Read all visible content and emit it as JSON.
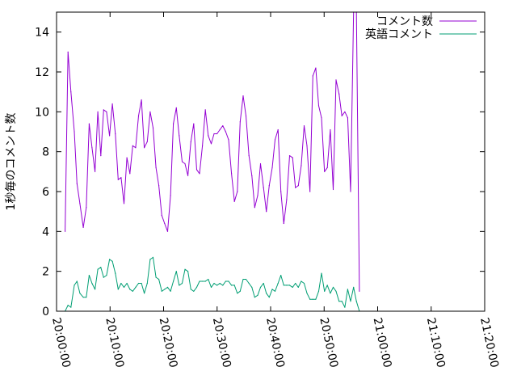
{
  "chart_data": {
    "type": "line",
    "title": "",
    "xlabel": "",
    "ylabel": "1秒毎のコメント数",
    "xlim": [
      "20:00:00",
      "21:20:00"
    ],
    "ylim": [
      0,
      15
    ],
    "grid": false,
    "legend_position": "top-right",
    "y_ticks": [
      0,
      2,
      4,
      6,
      8,
      10,
      12,
      14
    ],
    "x_ticks": [
      "20:00:00",
      "20:10:00",
      "20:20:00",
      "20:30:00",
      "20:40:00",
      "20:50:00",
      "21:00:00",
      "21:10:00",
      "21:20:00"
    ],
    "series": [
      {
        "name": "コメント数",
        "color": "#9400d3",
        "points": [
          [
            "20:01:36",
            4.0
          ],
          [
            "20:02:09",
            13.0
          ],
          [
            "20:02:41",
            11.0
          ],
          [
            "20:03:19",
            9.0
          ],
          [
            "20:03:49",
            6.4
          ],
          [
            "20:04:22",
            5.4
          ],
          [
            "20:05:00",
            4.2
          ],
          [
            "20:05:33",
            5.2
          ],
          [
            "20:06:06",
            9.4
          ],
          [
            "20:06:38",
            8.2
          ],
          [
            "20:07:11",
            7.0
          ],
          [
            "20:07:43",
            10.0
          ],
          [
            "20:08:16",
            7.8
          ],
          [
            "20:08:48",
            10.1
          ],
          [
            "20:09:21",
            10.0
          ],
          [
            "20:09:54",
            8.8
          ],
          [
            "20:10:26",
            10.4
          ],
          [
            "20:10:59",
            8.9
          ],
          [
            "20:11:31",
            6.6
          ],
          [
            "20:12:04",
            6.7
          ],
          [
            "20:12:36",
            5.4
          ],
          [
            "20:13:09",
            7.7
          ],
          [
            "20:13:42",
            6.9
          ],
          [
            "20:14:14",
            8.3
          ],
          [
            "20:14:47",
            8.2
          ],
          [
            "20:15:19",
            9.8
          ],
          [
            "20:15:52",
            10.6
          ],
          [
            "20:16:24",
            8.2
          ],
          [
            "20:16:57",
            8.5
          ],
          [
            "20:17:30",
            10.0
          ],
          [
            "20:18:02",
            9.2
          ],
          [
            "20:18:35",
            7.2
          ],
          [
            "20:19:07",
            6.3
          ],
          [
            "20:19:40",
            4.8
          ],
          [
            "20:20:12",
            4.4
          ],
          [
            "20:20:45",
            4.0
          ],
          [
            "20:21:18",
            5.8
          ],
          [
            "20:21:50",
            9.4
          ],
          [
            "20:22:23",
            10.2
          ],
          [
            "20:22:55",
            8.8
          ],
          [
            "20:23:28",
            7.5
          ],
          [
            "20:24:00",
            7.4
          ],
          [
            "20:24:33",
            6.8
          ],
          [
            "20:25:06",
            8.5
          ],
          [
            "20:25:38",
            9.4
          ],
          [
            "20:26:11",
            7.1
          ],
          [
            "20:26:43",
            6.9
          ],
          [
            "20:27:16",
            8.3
          ],
          [
            "20:27:48",
            10.1
          ],
          [
            "20:28:21",
            8.8
          ],
          [
            "20:28:54",
            8.4
          ],
          [
            "20:29:26",
            8.9
          ],
          [
            "20:29:59",
            8.9
          ],
          [
            "20:30:31",
            9.1
          ],
          [
            "20:31:04",
            9.3
          ],
          [
            "20:31:36",
            9.0
          ],
          [
            "20:32:09",
            8.6
          ],
          [
            "20:32:42",
            6.9
          ],
          [
            "20:33:14",
            5.5
          ],
          [
            "20:33:47",
            6.0
          ],
          [
            "20:34:19",
            9.5
          ],
          [
            "20:34:52",
            10.8
          ],
          [
            "20:35:24",
            9.8
          ],
          [
            "20:35:57",
            7.8
          ],
          [
            "20:36:30",
            6.8
          ],
          [
            "20:37:02",
            5.2
          ],
          [
            "20:37:35",
            5.8
          ],
          [
            "20:38:07",
            7.4
          ],
          [
            "20:38:40",
            6.2
          ],
          [
            "20:39:12",
            5.0
          ],
          [
            "20:39:45",
            6.3
          ],
          [
            "20:40:18",
            7.2
          ],
          [
            "20:40:50",
            8.6
          ],
          [
            "20:41:23",
            9.1
          ],
          [
            "20:41:55",
            6.0
          ],
          [
            "20:42:28",
            4.4
          ],
          [
            "20:43:00",
            5.6
          ],
          [
            "20:43:33",
            7.8
          ],
          [
            "20:44:06",
            7.7
          ],
          [
            "20:44:38",
            6.2
          ],
          [
            "20:45:11",
            6.3
          ],
          [
            "20:45:43",
            7.3
          ],
          [
            "20:46:16",
            9.3
          ],
          [
            "20:46:48",
            8.3
          ],
          [
            "20:47:21",
            6.0
          ],
          [
            "20:47:54",
            11.8
          ],
          [
            "20:48:26",
            12.2
          ],
          [
            "20:48:59",
            10.3
          ],
          [
            "20:49:31",
            9.7
          ],
          [
            "20:50:04",
            7.0
          ],
          [
            "20:50:36",
            7.2
          ],
          [
            "20:51:09",
            9.1
          ],
          [
            "20:51:42",
            6.1
          ],
          [
            "20:52:14",
            11.6
          ],
          [
            "20:52:47",
            10.9
          ],
          [
            "20:53:19",
            9.8
          ],
          [
            "20:53:52",
            10.0
          ],
          [
            "20:54:24",
            9.7
          ],
          [
            "20:54:57",
            6.0
          ],
          [
            "20:55:30",
            15.0
          ],
          [
            "20:56:02",
            15.0
          ],
          [
            "20:56:35",
            1.0
          ]
        ]
      },
      {
        "name": "英語コメント",
        "color": "#009e73",
        "points": [
          [
            "20:01:36",
            0.0
          ],
          [
            "20:02:09",
            0.3
          ],
          [
            "20:02:41",
            0.2
          ],
          [
            "20:03:19",
            1.3
          ],
          [
            "20:03:49",
            1.5
          ],
          [
            "20:04:22",
            0.9
          ],
          [
            "20:05:00",
            0.7
          ],
          [
            "20:05:33",
            0.7
          ],
          [
            "20:06:06",
            1.8
          ],
          [
            "20:06:38",
            1.4
          ],
          [
            "20:07:11",
            1.1
          ],
          [
            "20:07:43",
            2.1
          ],
          [
            "20:08:16",
            2.2
          ],
          [
            "20:08:48",
            1.7
          ],
          [
            "20:09:21",
            1.8
          ],
          [
            "20:09:54",
            2.6
          ],
          [
            "20:10:26",
            2.5
          ],
          [
            "20:10:59",
            1.9
          ],
          [
            "20:11:31",
            1.1
          ],
          [
            "20:12:04",
            1.4
          ],
          [
            "20:12:36",
            1.2
          ],
          [
            "20:13:09",
            1.4
          ],
          [
            "20:13:42",
            1.1
          ],
          [
            "20:14:14",
            1.0
          ],
          [
            "20:14:47",
            1.2
          ],
          [
            "20:15:19",
            1.4
          ],
          [
            "20:15:52",
            1.4
          ],
          [
            "20:16:24",
            0.9
          ],
          [
            "20:16:57",
            1.4
          ],
          [
            "20:17:30",
            2.6
          ],
          [
            "20:18:02",
            2.7
          ],
          [
            "20:18:35",
            1.7
          ],
          [
            "20:19:07",
            1.6
          ],
          [
            "20:19:40",
            1.0
          ],
          [
            "20:20:12",
            1.1
          ],
          [
            "20:20:45",
            1.2
          ],
          [
            "20:21:18",
            1.0
          ],
          [
            "20:21:50",
            1.5
          ],
          [
            "20:22:23",
            2.0
          ],
          [
            "20:22:55",
            1.3
          ],
          [
            "20:23:28",
            1.4
          ],
          [
            "20:24:00",
            2.1
          ],
          [
            "20:24:33",
            2.0
          ],
          [
            "20:25:06",
            1.1
          ],
          [
            "20:25:38",
            1.0
          ],
          [
            "20:26:11",
            1.2
          ],
          [
            "20:26:43",
            1.5
          ],
          [
            "20:27:16",
            1.5
          ],
          [
            "20:27:48",
            1.5
          ],
          [
            "20:28:21",
            1.6
          ],
          [
            "20:28:54",
            1.2
          ],
          [
            "20:29:26",
            1.4
          ],
          [
            "20:29:59",
            1.3
          ],
          [
            "20:30:31",
            1.4
          ],
          [
            "20:31:04",
            1.3
          ],
          [
            "20:31:36",
            1.5
          ],
          [
            "20:32:09",
            1.5
          ],
          [
            "20:32:42",
            1.3
          ],
          [
            "20:33:14",
            1.3
          ],
          [
            "20:33:47",
            0.9
          ],
          [
            "20:34:19",
            1.0
          ],
          [
            "20:34:52",
            1.6
          ],
          [
            "20:35:24",
            1.6
          ],
          [
            "20:35:57",
            1.4
          ],
          [
            "20:36:30",
            1.2
          ],
          [
            "20:37:02",
            0.7
          ],
          [
            "20:37:35",
            0.8
          ],
          [
            "20:38:07",
            1.2
          ],
          [
            "20:38:40",
            1.4
          ],
          [
            "20:39:12",
            0.9
          ],
          [
            "20:39:45",
            0.7
          ],
          [
            "20:40:18",
            1.1
          ],
          [
            "20:40:50",
            1.0
          ],
          [
            "20:41:23",
            1.4
          ],
          [
            "20:41:55",
            1.8
          ],
          [
            "20:42:28",
            1.3
          ],
          [
            "20:43:00",
            1.3
          ],
          [
            "20:43:33",
            1.3
          ],
          [
            "20:44:06",
            1.2
          ],
          [
            "20:44:38",
            1.4
          ],
          [
            "20:45:11",
            1.2
          ],
          [
            "20:45:43",
            1.5
          ],
          [
            "20:46:16",
            1.4
          ],
          [
            "20:46:48",
            0.9
          ],
          [
            "20:47:21",
            0.6
          ],
          [
            "20:47:54",
            0.6
          ],
          [
            "20:48:26",
            0.6
          ],
          [
            "20:48:59",
            1.0
          ],
          [
            "20:49:31",
            1.9
          ],
          [
            "20:50:04",
            1.0
          ],
          [
            "20:50:36",
            1.3
          ],
          [
            "20:51:09",
            0.9
          ],
          [
            "20:51:42",
            1.2
          ],
          [
            "20:52:14",
            1.0
          ],
          [
            "20:52:47",
            0.5
          ],
          [
            "20:53:19",
            0.5
          ],
          [
            "20:53:52",
            0.2
          ],
          [
            "20:54:24",
            1.1
          ],
          [
            "20:54:57",
            0.5
          ],
          [
            "20:55:30",
            1.2
          ],
          [
            "20:56:02",
            0.5
          ],
          [
            "20:56:35",
            0.0
          ]
        ]
      }
    ]
  }
}
